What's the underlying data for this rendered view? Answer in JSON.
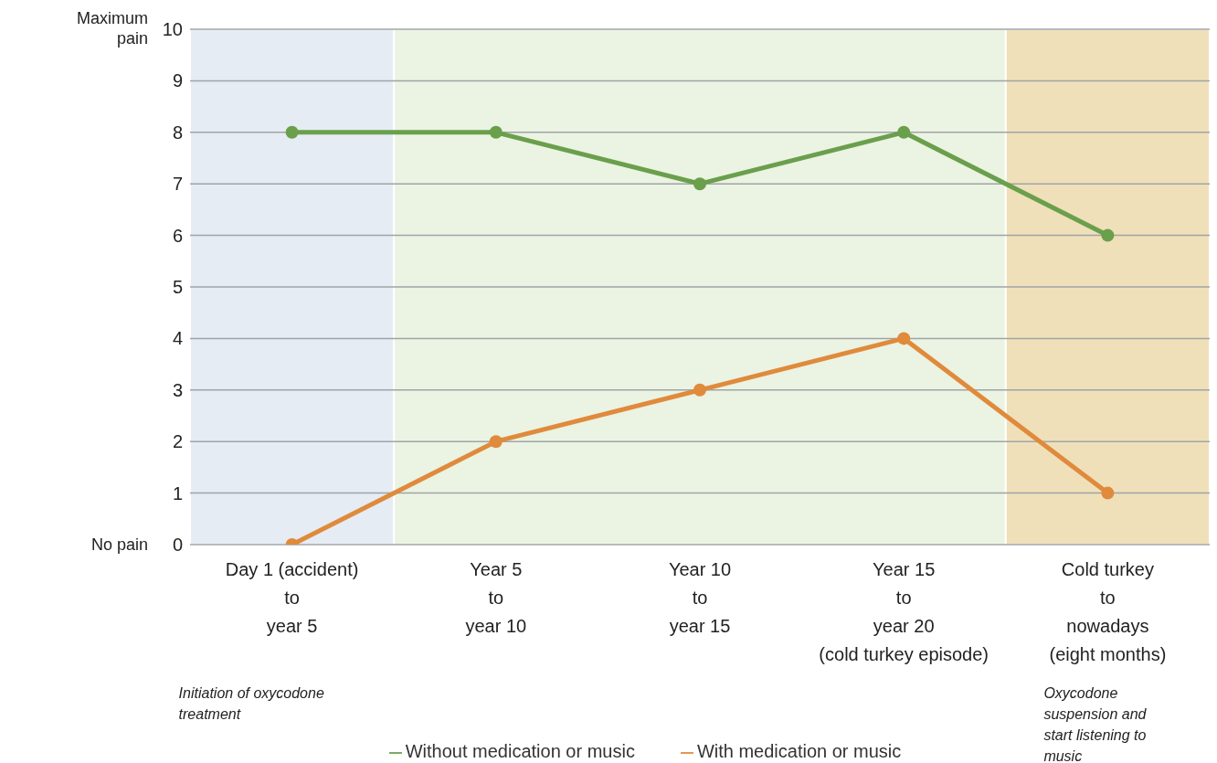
{
  "chart_data": {
    "type": "line",
    "categories": [
      "Day 1 (accident)\nto\nyear 5",
      "Year 5\nto\nyear 10",
      "Year 10\nto\nyear 15",
      "Year 15\nto\nyear 20\n(cold turkey episode)",
      "Cold turkey\nto\nnowadays\n(eight months)"
    ],
    "series": [
      {
        "name": "Without medication or music",
        "color": "#6a9f4c",
        "values": [
          8,
          8,
          7,
          8,
          6
        ]
      },
      {
        "name": "With medication or music",
        "color": "#e08a3c",
        "values": [
          0,
          2,
          3,
          4,
          1
        ]
      }
    ],
    "ylim": [
      0,
      10
    ],
    "yticks": [
      0,
      1,
      2,
      3,
      4,
      5,
      6,
      7,
      8,
      9,
      10
    ],
    "grid": "y",
    "legend": "bottom",
    "marker": "circle",
    "bands": [
      {
        "axis": "x",
        "from": "Day 1 (accident)\nto\nyear 5",
        "to": "Day 1 (accident)\nto\nyear 5",
        "color": "#dce6f0"
      },
      {
        "axis": "x",
        "from": "Year 5\nto\nyear 10",
        "to": "Year 15\nto\nyear 20\n(cold turkey episode)",
        "color": "#e4efd8"
      },
      {
        "axis": "x",
        "from": "Cold turkey\nto\nnowadays\n(eight months)",
        "to": "Cold turkey\nto\nnowadays\n(eight months)",
        "color": "#e9d6a3"
      }
    ],
    "annotations": [
      "Maximum\npain",
      "No pain",
      "Initiation of oxycodone\ntreatment",
      "Oxycodone\nsuspension and\nstart listening to\nmusic"
    ]
  }
}
